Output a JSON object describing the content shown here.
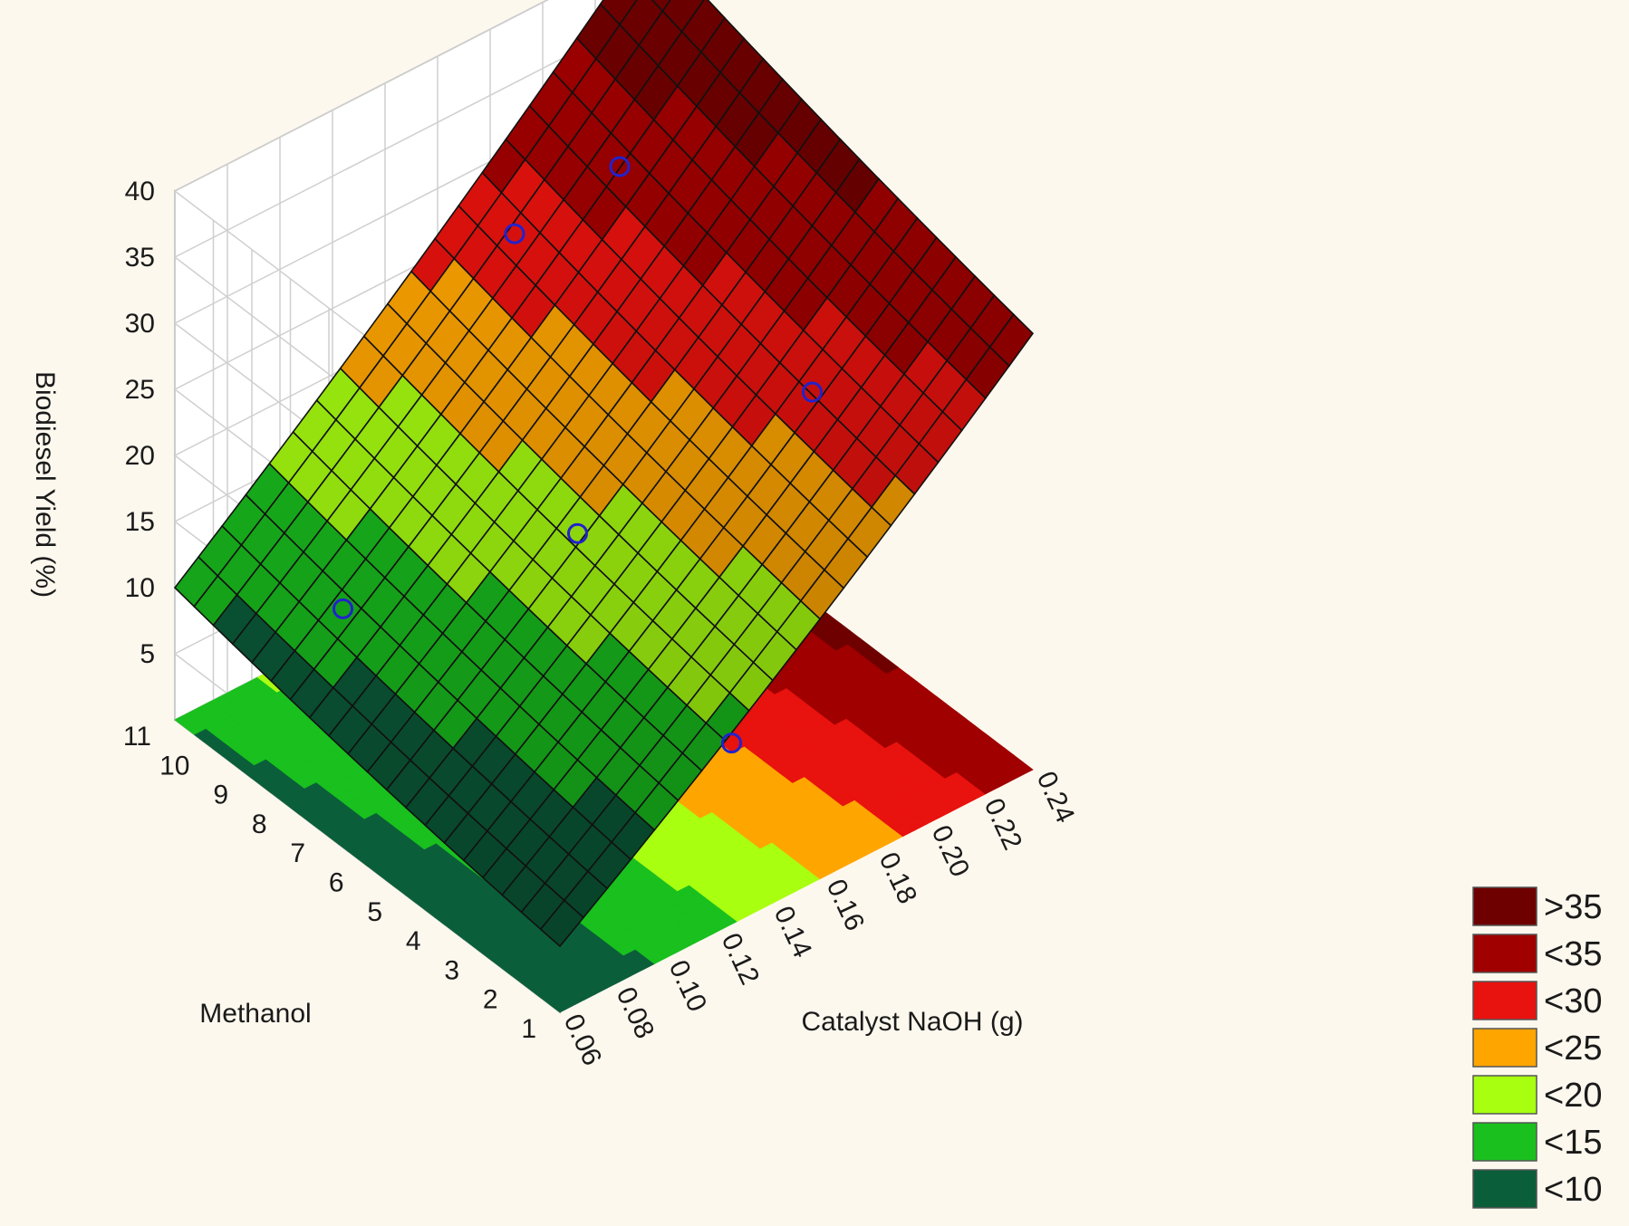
{
  "chart_data": {
    "type": "surface3d",
    "xlabel": "Catalyst NaOH (g)",
    "ylabel": "Methanol",
    "zlabel": "Biodiesel Yield (%)",
    "x_ticks": [
      "0.06",
      "0.08",
      "0.10",
      "0.12",
      "0.14",
      "0.16",
      "0.18",
      "0.20",
      "0.22",
      "0.24"
    ],
    "y_ticks": [
      "1",
      "2",
      "3",
      "4",
      "5",
      "6",
      "7",
      "8",
      "9",
      "10",
      "11"
    ],
    "z_ticks": [
      "5",
      "10",
      "15",
      "20",
      "25",
      "30",
      "35",
      "40"
    ],
    "xlim": [
      0.06,
      0.24
    ],
    "ylim": [
      1,
      11
    ],
    "zlim": [
      0,
      40
    ],
    "surface_corners": [
      {
        "x": 0.06,
        "y": 1,
        "z": 5
      },
      {
        "x": 0.24,
        "y": 1,
        "z": 30
      },
      {
        "x": 0.24,
        "y": 11,
        "z": 38
      },
      {
        "x": 0.06,
        "y": 11,
        "z": 10
      }
    ],
    "observed_points": [
      {
        "x": 0.14,
        "y": 2,
        "z": 10
      },
      {
        "x": 0.14,
        "y": 6,
        "z": 17
      },
      {
        "x": 0.08,
        "y": 8,
        "z": 13
      },
      {
        "x": 0.2,
        "y": 4,
        "z": 26
      },
      {
        "x": 0.2,
        "y": 9,
        "z": 32
      },
      {
        "x": 0.16,
        "y": 9,
        "z": 31
      }
    ],
    "grid": true,
    "legend_position": "bottom-right",
    "legend": [
      {
        "label": ">35",
        "color": "#6e0000"
      },
      {
        "label": "<35",
        "color": "#a00000"
      },
      {
        "label": "<30",
        "color": "#e8120e"
      },
      {
        "label": "<25",
        "color": "#ffa500"
      },
      {
        "label": "<20",
        "color": "#a8ff10"
      },
      {
        "label": "<15",
        "color": "#19c01e"
      },
      {
        "label": "<10",
        "color": "#0b5e3a"
      }
    ],
    "point_color": "#2222cc"
  }
}
